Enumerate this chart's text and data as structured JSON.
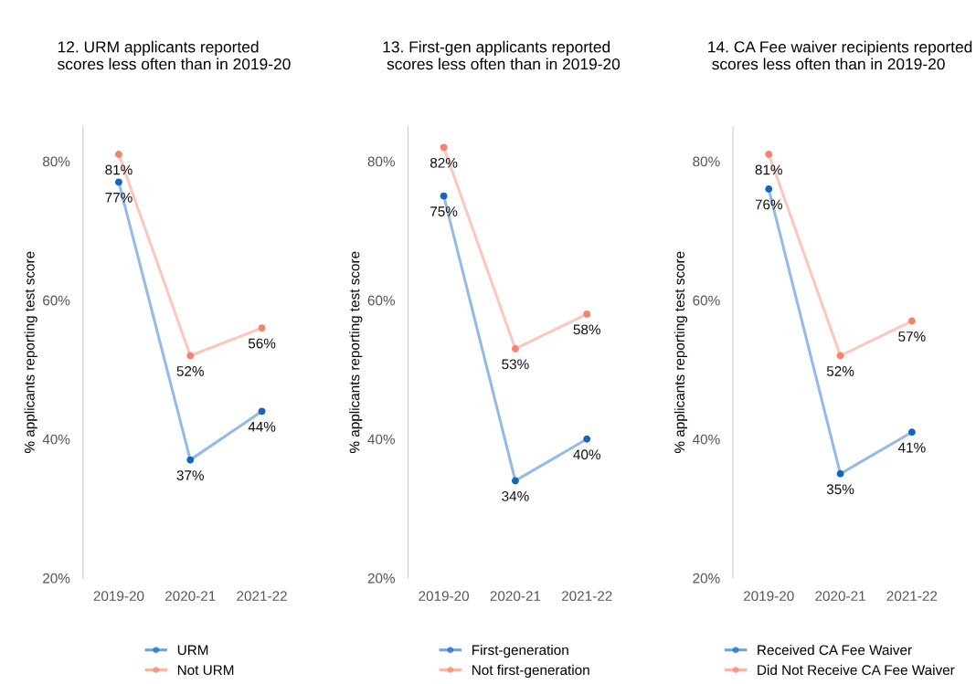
{
  "chart_data": [
    {
      "type": "line",
      "title": "12. URM applicants reported\nscores less often than in 2019-20",
      "ylabel": "% applicants reporting test score",
      "categories": [
        "2019-20",
        "2020-21",
        "2021-22"
      ],
      "ylim": [
        20,
        85
      ],
      "yticks": [
        {
          "value": 20,
          "label": "20%"
        },
        {
          "value": 40,
          "label": "40%"
        },
        {
          "value": 60,
          "label": "60%"
        },
        {
          "value": 80,
          "label": "80%"
        }
      ],
      "marker": "circle",
      "grid": false,
      "legend": "bottom",
      "series": [
        {
          "name": "URM",
          "color": "#1565c0",
          "values": [
            77,
            37,
            44
          ],
          "value_labels": [
            "77%",
            "37%",
            "44%"
          ]
        },
        {
          "name": "Not URM",
          "color": "#f4846c",
          "values": [
            81,
            52,
            56
          ],
          "value_labels": [
            "81%",
            "52%",
            "56%"
          ]
        }
      ]
    },
    {
      "type": "line",
      "title": "13. First-gen applicants reported\n scores less often than in 2019-20",
      "ylabel": "% applicants reporting test score",
      "categories": [
        "2019-20",
        "2020-21",
        "2021-22"
      ],
      "ylim": [
        20,
        85
      ],
      "yticks": [
        {
          "value": 20,
          "label": "20%"
        },
        {
          "value": 40,
          "label": "40%"
        },
        {
          "value": 60,
          "label": "60%"
        },
        {
          "value": 80,
          "label": "80%"
        }
      ],
      "marker": "circle",
      "grid": false,
      "legend": "bottom",
      "series": [
        {
          "name": "First-generation",
          "color": "#1565c0",
          "values": [
            75,
            34,
            40
          ],
          "value_labels": [
            "75%",
            "34%",
            "40%"
          ]
        },
        {
          "name": "Not first-generation",
          "color": "#f4846c",
          "values": [
            82,
            53,
            58
          ],
          "value_labels": [
            "82%",
            "53%",
            "58%"
          ]
        }
      ]
    },
    {
      "type": "line",
      "title": "14. CA Fee waiver recipients reported\n scores less often than in 2019-20",
      "ylabel": "% applicants reporting test score",
      "categories": [
        "2019-20",
        "2020-21",
        "2021-22"
      ],
      "ylim": [
        20,
        85
      ],
      "yticks": [
        {
          "value": 20,
          "label": "20%"
        },
        {
          "value": 40,
          "label": "40%"
        },
        {
          "value": 60,
          "label": "60%"
        },
        {
          "value": 80,
          "label": "80%"
        }
      ],
      "marker": "circle",
      "grid": false,
      "legend": "bottom",
      "series": [
        {
          "name": "Received CA Fee Waiver",
          "color": "#1565c0",
          "values": [
            76,
            35,
            41
          ],
          "value_labels": [
            "76%",
            "35%",
            "41%"
          ]
        },
        {
          "name": "Did Not Receive CA Fee Waiver",
          "color": "#f4846c",
          "values": [
            81,
            52,
            57
          ],
          "value_labels": [
            "81%",
            "52%",
            "57%"
          ]
        }
      ]
    }
  ]
}
